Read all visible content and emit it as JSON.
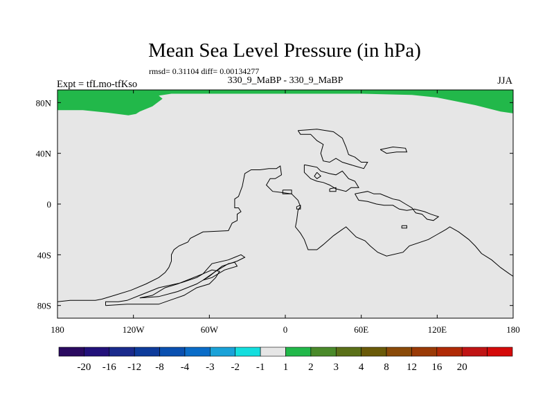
{
  "chart_data": {
    "type": "heatmap",
    "title": "Mean Sea Level Pressure (in hPa)",
    "stats_line": "rmsd= 0.31104 diff= 0.00134277",
    "subtitle_center": "330_9_MaBP - 330_9_MaBP",
    "subtitle_left": "Expt = tfLmo-tfKso",
    "subtitle_right": "JJA",
    "x_range": [
      -180,
      180
    ],
    "y_range": [
      -90,
      90
    ],
    "x_ticks": [
      {
        "value": -180,
        "label": "180"
      },
      {
        "value": -120,
        "label": "120W"
      },
      {
        "value": -60,
        "label": "60W"
      },
      {
        "value": 0,
        "label": "0"
      },
      {
        "value": 60,
        "label": "60E"
      },
      {
        "value": 120,
        "label": "120E"
      },
      {
        "value": 180,
        "label": "180"
      }
    ],
    "y_ticks": [
      {
        "value": 80,
        "label": "80N"
      },
      {
        "value": 40,
        "label": "40N"
      },
      {
        "value": 0,
        "label": "0"
      },
      {
        "value": -40,
        "label": "40S"
      },
      {
        "value": -80,
        "label": "80S"
      }
    ],
    "background_field": {
      "value_range": "-1 to 1",
      "color": "#e6e6e6"
    },
    "positive_region": {
      "value_range": "1 to 2",
      "color": "#22b84a",
      "boundary_lonlat": [
        [
          -180,
          90
        ],
        [
          180,
          90
        ],
        [
          180,
          71.5
        ],
        [
          170,
          73
        ],
        [
          150,
          78
        ],
        [
          120,
          84
        ],
        [
          100,
          86
        ],
        [
          60,
          87
        ],
        [
          0,
          87
        ],
        [
          -60,
          87
        ],
        [
          -90,
          87
        ],
        [
          -100,
          85.5
        ],
        [
          -97,
          83
        ],
        [
          -105,
          77
        ],
        [
          -115,
          73
        ],
        [
          -118,
          71
        ],
        [
          -124,
          70
        ],
        [
          -140,
          72
        ],
        [
          -160,
          74
        ],
        [
          -180,
          74
        ]
      ]
    },
    "coastlines_lonlat": [
      [
        [
          -180,
          -77
        ],
        [
          -170,
          -76
        ],
        [
          -160,
          -76
        ],
        [
          -150,
          -76
        ],
        [
          -145,
          -75
        ],
        [
          -135,
          -72
        ],
        [
          -122,
          -68
        ],
        [
          -110,
          -63
        ],
        [
          -100,
          -58
        ],
        [
          -95,
          -54
        ],
        [
          -92,
          -50
        ],
        [
          -90,
          -45
        ],
        [
          -90,
          -40
        ],
        [
          -88,
          -36
        ],
        [
          -84,
          -33
        ],
        [
          -77,
          -30
        ],
        [
          -75,
          -27
        ],
        [
          -65,
          -22
        ],
        [
          -45,
          -21
        ],
        [
          -42,
          -15
        ],
        [
          -38,
          -13
        ],
        [
          -38,
          -8
        ],
        [
          -35,
          -6
        ],
        [
          -37,
          -3
        ],
        [
          -40,
          -3
        ],
        [
          -40,
          4
        ],
        [
          -37,
          6
        ],
        [
          -34,
          14
        ],
        [
          -32,
          24
        ],
        [
          -27,
          27
        ],
        [
          -20,
          27
        ],
        [
          -13,
          28
        ],
        [
          -7,
          28
        ],
        [
          -4,
          30
        ],
        [
          -3,
          23
        ],
        [
          -8,
          20
        ],
        [
          -12,
          20
        ],
        [
          -15,
          15
        ],
        [
          -10,
          10
        ],
        [
          -2,
          9
        ],
        [
          5,
          8
        ],
        [
          10,
          3
        ],
        [
          12,
          -2
        ],
        [
          10,
          -5
        ],
        [
          9,
          -13
        ],
        [
          8,
          -18
        ],
        [
          12,
          -23
        ],
        [
          15,
          -28
        ],
        [
          18,
          -36
        ],
        [
          25,
          -36
        ],
        [
          30,
          -32
        ],
        [
          38,
          -25
        ],
        [
          45,
          -20
        ],
        [
          48,
          -18
        ],
        [
          56,
          -26
        ],
        [
          63,
          -29
        ],
        [
          67,
          -33
        ],
        [
          73,
          -38
        ],
        [
          80,
          -41
        ],
        [
          93,
          -38
        ],
        [
          98,
          -33
        ],
        [
          113,
          -28
        ],
        [
          120,
          -24
        ],
        [
          127,
          -20
        ],
        [
          130,
          -18
        ],
        [
          137,
          -22
        ],
        [
          145,
          -28
        ],
        [
          150,
          -33
        ],
        [
          155,
          -39
        ],
        [
          163,
          -44
        ],
        [
          170,
          -50
        ],
        [
          177,
          -55
        ],
        [
          180,
          -57
        ]
      ],
      [
        [
          -142,
          -80
        ],
        [
          -125,
          -79
        ],
        [
          -100,
          -79
        ],
        [
          -80,
          -72
        ],
        [
          -70,
          -66
        ],
        [
          -60,
          -63
        ],
        [
          -55,
          -58
        ],
        [
          -52,
          -53
        ],
        [
          -58,
          -52
        ],
        [
          -65,
          -55
        ],
        [
          -70,
          -58
        ],
        [
          -82,
          -62
        ],
        [
          -100,
          -66
        ],
        [
          -115,
          -72
        ],
        [
          -125,
          -76
        ],
        [
          -132,
          -77
        ],
        [
          -142,
          -77
        ],
        [
          -142,
          -80
        ]
      ],
      [
        [
          -115,
          -74
        ],
        [
          -105,
          -72
        ],
        [
          -95,
          -66
        ],
        [
          -85,
          -63
        ],
        [
          -65,
          -55
        ],
        [
          -58,
          -47
        ],
        [
          -45,
          -44
        ],
        [
          -40,
          -42
        ],
        [
          -35,
          -40
        ],
        [
          -32,
          -42
        ],
        [
          -38,
          -45
        ],
        [
          -50,
          -49
        ],
        [
          -60,
          -57
        ],
        [
          -70,
          -63
        ],
        [
          -85,
          -69
        ],
        [
          -100,
          -73
        ],
        [
          -115,
          -74
        ]
      ],
      [
        [
          -65,
          -60
        ],
        [
          -55,
          -53
        ],
        [
          -45,
          -47
        ],
        [
          -40,
          -46
        ],
        [
          -38,
          -49
        ],
        [
          -48,
          -52
        ],
        [
          -58,
          -58
        ],
        [
          -65,
          -60
        ]
      ],
      [
        [
          10,
          58
        ],
        [
          25,
          59
        ],
        [
          38,
          57
        ],
        [
          45,
          52
        ],
        [
          48,
          45
        ],
        [
          50,
          39
        ],
        [
          55,
          37
        ],
        [
          60,
          33
        ],
        [
          65,
          33
        ],
        [
          62,
          28
        ],
        [
          55,
          30
        ],
        [
          45,
          33
        ],
        [
          40,
          36
        ],
        [
          35,
          33
        ],
        [
          30,
          34
        ],
        [
          28,
          40
        ],
        [
          30,
          47
        ],
        [
          25,
          50
        ],
        [
          20,
          55
        ],
        [
          12,
          55
        ],
        [
          10,
          58
        ]
      ],
      [
        [
          15,
          31
        ],
        [
          20,
          30
        ],
        [
          25,
          29
        ],
        [
          28,
          26
        ],
        [
          35,
          24
        ],
        [
          40,
          23
        ],
        [
          45,
          26
        ],
        [
          50,
          20
        ],
        [
          55,
          18
        ],
        [
          58,
          13
        ],
        [
          52,
          13
        ],
        [
          48,
          10
        ],
        [
          40,
          12
        ],
        [
          35,
          15
        ],
        [
          30,
          17
        ],
        [
          25,
          18
        ],
        [
          20,
          20
        ],
        [
          15,
          25
        ],
        [
          15,
          31
        ]
      ],
      [
        [
          55,
          8
        ],
        [
          60,
          9
        ],
        [
          65,
          10
        ],
        [
          70,
          8
        ],
        [
          75,
          8
        ],
        [
          80,
          6
        ],
        [
          85,
          4
        ],
        [
          90,
          3
        ],
        [
          95,
          0
        ],
        [
          100,
          -3
        ],
        [
          103,
          -7
        ],
        [
          108,
          -8
        ],
        [
          112,
          -12
        ],
        [
          117,
          -13
        ],
        [
          121,
          -10
        ],
        [
          115,
          -8
        ],
        [
          110,
          -6
        ],
        [
          102,
          -4
        ],
        [
          96,
          -5
        ],
        [
          90,
          -4
        ],
        [
          85,
          -1
        ],
        [
          78,
          -1
        ],
        [
          72,
          0
        ],
        [
          65,
          2
        ],
        [
          58,
          3
        ],
        [
          55,
          8
        ]
      ],
      [
        [
          75,
          43
        ],
        [
          85,
          45
        ],
        [
          95,
          44
        ],
        [
          96,
          41
        ],
        [
          88,
          41
        ],
        [
          80,
          40
        ],
        [
          75,
          43
        ]
      ],
      [
        [
          92,
          -17
        ],
        [
          96,
          -17
        ],
        [
          96,
          -19
        ],
        [
          92,
          -19
        ],
        [
          92,
          -17
        ]
      ],
      [
        [
          25,
          25
        ],
        [
          28,
          22
        ],
        [
          25,
          20
        ],
        [
          23,
          22
        ],
        [
          25,
          25
        ]
      ],
      [
        [
          -2,
          11
        ],
        [
          5,
          11
        ],
        [
          5,
          8
        ],
        [
          -2,
          8
        ],
        [
          -2,
          11
        ]
      ],
      [
        [
          35,
          12
        ],
        [
          40,
          13
        ],
        [
          40,
          10
        ],
        [
          35,
          10
        ],
        [
          35,
          12
        ]
      ],
      [
        [
          9,
          -2
        ],
        [
          12,
          -1
        ],
        [
          12,
          -4
        ],
        [
          9,
          -4
        ],
        [
          9,
          -2
        ]
      ]
    ],
    "colorbar": {
      "colors": [
        "#2a0a60",
        "#22117a",
        "#1a2a8c",
        "#0d3b9b",
        "#0a50b0",
        "#0a6cc8",
        "#1aa2d8",
        "#14dede",
        "#e6e6e6",
        "#22b84a",
        "#4a8a2a",
        "#5a7018",
        "#6a5a08",
        "#8a4a08",
        "#9a3a06",
        "#b02a06",
        "#c01414",
        "#d40a0a"
      ],
      "labels": [
        "-20",
        "-16",
        "-12",
        "-8",
        "-4",
        "-3",
        "-2",
        "-1",
        "1",
        "2",
        "3",
        "4",
        "8",
        "12",
        "16",
        "20"
      ]
    }
  }
}
